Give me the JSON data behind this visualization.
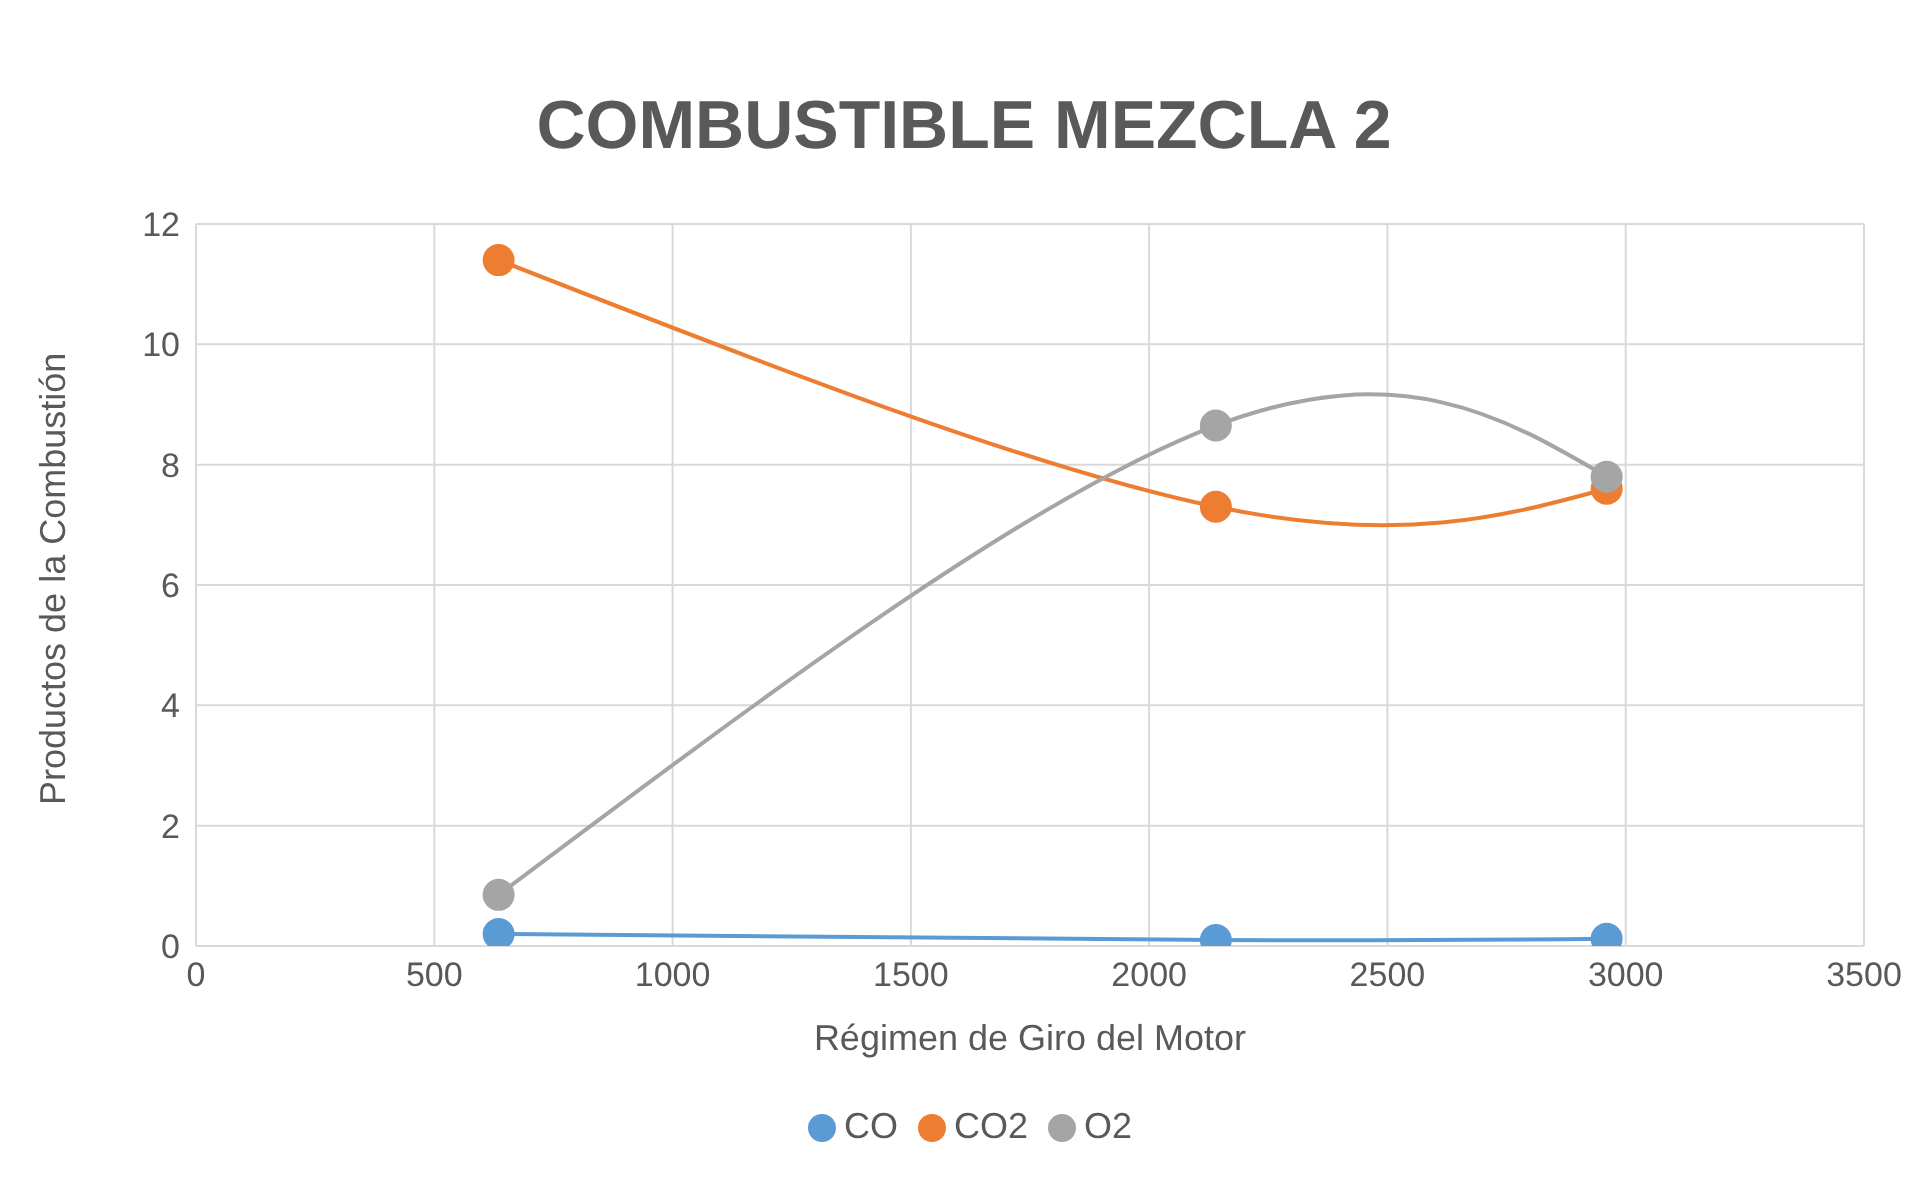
{
  "chart_data": {
    "type": "line",
    "title": "COMBUSTIBLE MEZCLA 2",
    "xlabel": "Régimen de Giro del Motor",
    "ylabel": "Productos de la Combustión",
    "x": [
      635,
      2140,
      2960
    ],
    "series": [
      {
        "name": "CO",
        "color": "#5b9bd5",
        "values": [
          0.2,
          0.1,
          0.12
        ]
      },
      {
        "name": "CO2",
        "color": "#ed7d31",
        "values": [
          11.4,
          7.3,
          7.6
        ]
      },
      {
        "name": "O2",
        "color": "#a5a5a5",
        "values": [
          0.85,
          8.65,
          7.8
        ]
      }
    ],
    "xlim": [
      0,
      3500
    ],
    "xticks": [
      0,
      500,
      1000,
      1500,
      2000,
      2500,
      3000,
      3500
    ],
    "ylim": [
      0,
      12
    ],
    "yticks": [
      0,
      2,
      4,
      6,
      8,
      10,
      12
    ],
    "grid": true,
    "legend": "bottom",
    "marker": "circle",
    "line_style": "solid"
  }
}
